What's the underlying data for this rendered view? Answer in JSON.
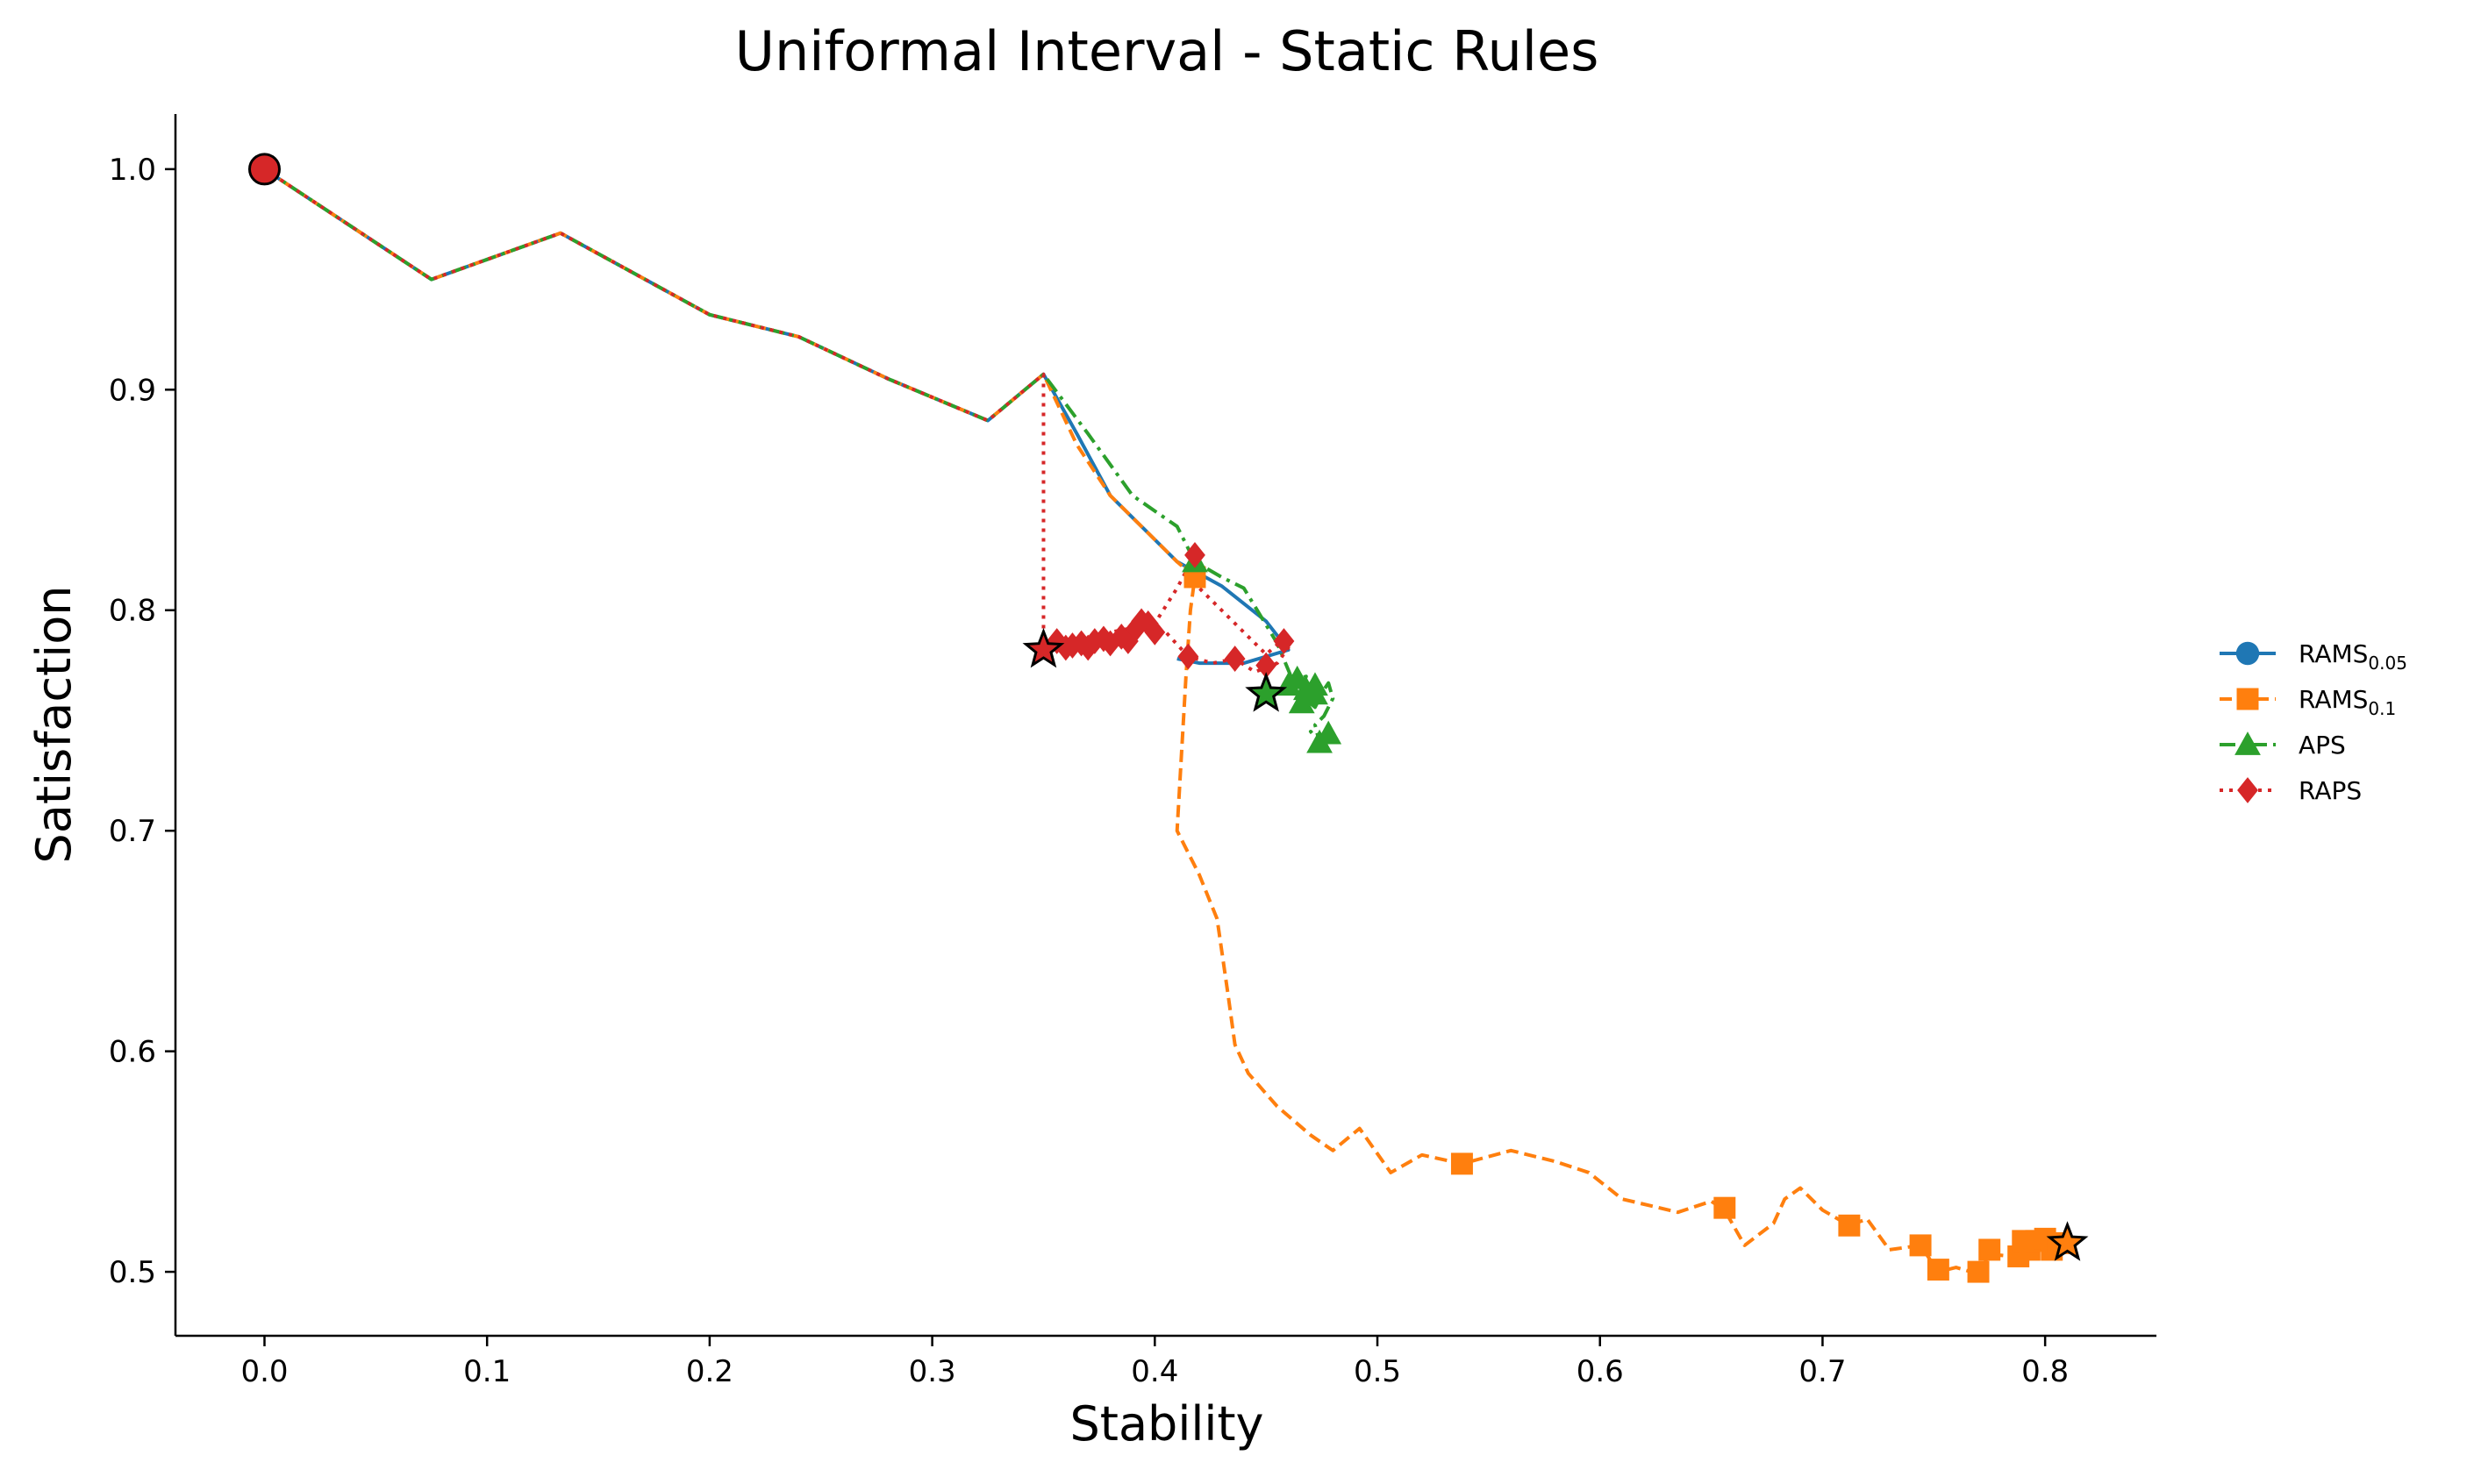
{
  "chart_data": {
    "type": "line",
    "title": "Uniformal Interval - Static Rules",
    "xlabel": "Stability",
    "ylabel": "Satisfaction",
    "xlim": [
      -0.04,
      0.85
    ],
    "ylim": [
      0.471,
      1.025
    ],
    "x_ticks": [
      "0.0",
      "0.1",
      "0.2",
      "0.3",
      "0.4",
      "0.5",
      "0.6",
      "0.7",
      "0.8"
    ],
    "x_tick_values": [
      0.0,
      0.1,
      0.2,
      0.3,
      0.4,
      0.5,
      0.6,
      0.7,
      0.8
    ],
    "y_ticks": [
      "0.5",
      "0.6",
      "0.7",
      "0.8",
      "0.9",
      "1.0"
    ],
    "y_tick_values": [
      0.5,
      0.6,
      0.7,
      0.8,
      0.9,
      1.0
    ],
    "grid": false,
    "legend_position": "right",
    "shared_path": {
      "x": [
        0.0,
        0.075,
        0.133,
        0.2,
        0.24,
        0.28,
        0.325,
        0.35
      ],
      "y": [
        1.0,
        0.95,
        0.971,
        0.934,
        0.924,
        0.905,
        0.886,
        0.907
      ]
    },
    "series": [
      {
        "name": "RAMS",
        "name_subscript": "0.05",
        "color": "#1f77b4",
        "dash": "solid",
        "marker": "circle",
        "x": [
          0.35,
          0.365,
          0.38,
          0.395,
          0.41,
          0.43,
          0.45,
          0.46,
          0.44,
          0.42,
          0.41
        ],
        "y": [
          0.907,
          0.88,
          0.852,
          0.837,
          0.822,
          0.811,
          0.795,
          0.782,
          0.776,
          0.776,
          0.778
        ],
        "markers_x": [],
        "markers_y": []
      },
      {
        "name": "RAMS",
        "name_subscript": "0.1",
        "color": "#ff7f0e",
        "dash": "dashed",
        "marker": "square",
        "x": [
          0.35,
          0.365,
          0.38,
          0.395,
          0.41,
          0.418,
          0.416,
          0.414,
          0.412,
          0.41,
          0.42,
          0.428,
          0.433,
          0.436,
          0.442,
          0.455,
          0.47,
          0.48,
          0.492,
          0.506,
          0.52,
          0.538,
          0.56,
          0.58,
          0.595,
          0.61,
          0.635,
          0.65,
          0.656,
          0.665,
          0.678,
          0.683,
          0.69,
          0.7,
          0.712,
          0.72,
          0.73,
          0.744,
          0.752,
          0.76,
          0.77,
          0.775,
          0.785,
          0.788,
          0.79,
          0.795,
          0.8,
          0.805,
          0.81,
          0.815
        ],
        "y": [
          0.907,
          0.875,
          0.852,
          0.837,
          0.822,
          0.815,
          0.8,
          0.77,
          0.735,
          0.7,
          0.68,
          0.66,
          0.625,
          0.603,
          0.59,
          0.575,
          0.562,
          0.555,
          0.565,
          0.545,
          0.553,
          0.549,
          0.555,
          0.55,
          0.545,
          0.533,
          0.527,
          0.532,
          0.528,
          0.512,
          0.522,
          0.533,
          0.538,
          0.528,
          0.521,
          0.524,
          0.51,
          0.512,
          0.5,
          0.502,
          0.499,
          0.508,
          0.507,
          0.514,
          0.51,
          0.515,
          0.508,
          0.515,
          0.514,
          0.51
        ],
        "markers_x": [
          0.418,
          0.538,
          0.656,
          0.712,
          0.744,
          0.752,
          0.77,
          0.775,
          0.788,
          0.79,
          0.793,
          0.796,
          0.8,
          0.803,
          0.806
        ],
        "markers_y": [
          0.815,
          0.549,
          0.529,
          0.521,
          0.512,
          0.501,
          0.5,
          0.51,
          0.507,
          0.514,
          0.51,
          0.514,
          0.515,
          0.51,
          0.513
        ]
      },
      {
        "name": "APS",
        "name_subscript": "",
        "color": "#2ca02c",
        "dash": "dashdot",
        "marker": "triangle",
        "x": [
          0.35,
          0.37,
          0.39,
          0.41,
          0.418,
          0.43,
          0.44,
          0.455,
          0.462,
          0.468,
          0.465,
          0.472,
          0.476,
          0.478,
          0.48,
          0.476,
          0.472,
          0.474,
          0.47,
          0.474,
          0.478
        ],
        "y": [
          0.907,
          0.88,
          0.852,
          0.838,
          0.822,
          0.815,
          0.81,
          0.785,
          0.768,
          0.77,
          0.762,
          0.756,
          0.764,
          0.767,
          0.76,
          0.752,
          0.748,
          0.74,
          0.745,
          0.742,
          0.745
        ],
        "markers_x": [
          0.418,
          0.46,
          0.464,
          0.468,
          0.472,
          0.466,
          0.474,
          0.478,
          0.472
        ],
        "markers_y": [
          0.822,
          0.766,
          0.769,
          0.764,
          0.766,
          0.758,
          0.74,
          0.744,
          0.762
        ]
      },
      {
        "name": "RAPS",
        "name_subscript": "",
        "color": "#d62728",
        "dash": "dotted",
        "marker": "diamond",
        "x": [
          0.35,
          0.36,
          0.37,
          0.38,
          0.39,
          0.4,
          0.41,
          0.418,
          0.42,
          0.43,
          0.44,
          0.45,
          0.458,
          0.46,
          0.455,
          0.445,
          0.436,
          0.426,
          0.415,
          0.405,
          0.398,
          0.395,
          0.39,
          0.385,
          0.38,
          0.375,
          0.37,
          0.365,
          0.36,
          0.355,
          0.35
        ],
        "y": [
          0.787,
          0.785,
          0.787,
          0.79,
          0.792,
          0.794,
          0.81,
          0.825,
          0.81,
          0.8,
          0.79,
          0.78,
          0.787,
          0.783,
          0.776,
          0.772,
          0.778,
          0.776,
          0.779,
          0.79,
          0.792,
          0.795,
          0.786,
          0.789,
          0.787,
          0.786,
          0.786,
          0.783,
          0.784,
          0.786,
          0.782
        ],
        "markers_x": [
          0.418,
          0.458,
          0.45,
          0.436,
          0.415,
          0.4,
          0.397,
          0.394,
          0.391,
          0.388,
          0.385,
          0.38,
          0.377,
          0.373,
          0.37,
          0.367,
          0.363,
          0.36,
          0.356
        ],
        "markers_y": [
          0.825,
          0.786,
          0.775,
          0.778,
          0.779,
          0.79,
          0.794,
          0.795,
          0.791,
          0.786,
          0.788,
          0.785,
          0.787,
          0.786,
          0.783,
          0.785,
          0.784,
          0.783,
          0.786
        ]
      }
    ],
    "start_point": {
      "x": 0.0,
      "y": 1.0,
      "color": "#d62728"
    },
    "best_points": [
      {
        "series": "RAPS",
        "x": 0.35,
        "y": 0.782,
        "color": "#d62728"
      },
      {
        "series": "APS",
        "x": 0.45,
        "y": 0.762,
        "color": "#2ca02c"
      },
      {
        "series": "RAMS 0.1",
        "x": 0.81,
        "y": 0.513,
        "color": "#ff7f0e"
      }
    ]
  }
}
